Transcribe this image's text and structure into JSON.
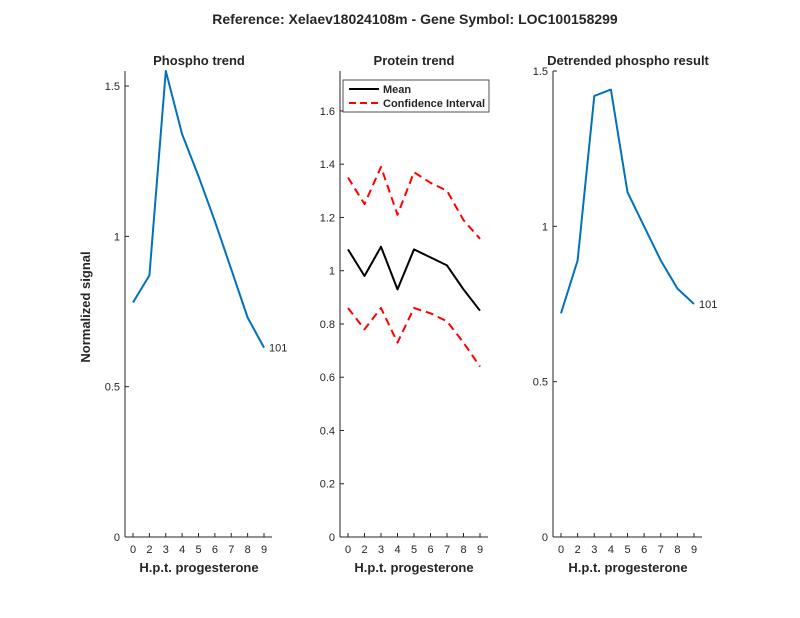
{
  "figure_title": "Reference:  Xelaev18024108m - Gene Symbol:  LOC100158299",
  "colors": {
    "blue": "#0072BD",
    "black": "#000000",
    "red": "#FF0000",
    "axis": "#262626"
  },
  "chart_data": [
    {
      "type": "line",
      "title": "Phospho trend",
      "xlabel": "H.p.t. progesterone",
      "ylabel": "Normalized signal",
      "categories": [
        "0",
        "2",
        "3",
        "4",
        "5",
        "6",
        "7",
        "8",
        "9"
      ],
      "yticks": [
        "0",
        "0.5",
        "1",
        "1.5"
      ],
      "ylim": [
        0,
        1.55
      ],
      "series": [
        {
          "values": [
            0.78,
            0.87,
            1.55,
            1.34,
            1.2,
            1.05,
            0.89,
            0.73,
            0.63
          ],
          "color": "#0072BD",
          "style": "solid",
          "end_label": "101"
        }
      ]
    },
    {
      "type": "line",
      "title": "Protein trend",
      "xlabel": "H.p.t. progesterone",
      "categories": [
        "0",
        "2",
        "3",
        "4",
        "5",
        "6",
        "7",
        "8",
        "9"
      ],
      "yticks": [
        "0",
        "0.2",
        "0.4",
        "0.6",
        "0.8",
        "1",
        "1.2",
        "1.4",
        "1.6"
      ],
      "ylim": [
        0,
        1.75
      ],
      "legend_placement": "top-left",
      "series": [
        {
          "name": "Mean",
          "values": [
            1.08,
            0.98,
            1.09,
            0.93,
            1.08,
            1.05,
            1.02,
            0.93,
            0.85
          ],
          "color": "#000000",
          "style": "solid"
        },
        {
          "name": "Confidence Interval",
          "values": [
            1.35,
            1.25,
            1.39,
            1.21,
            1.37,
            1.33,
            1.3,
            1.19,
            1.12
          ],
          "color": "#FF0000",
          "style": "dashed"
        },
        {
          "values": [
            0.86,
            0.78,
            0.86,
            0.73,
            0.86,
            0.84,
            0.81,
            0.73,
            0.64
          ],
          "color": "#FF0000",
          "style": "dashed"
        }
      ]
    },
    {
      "type": "line",
      "title": "Detrended phospho result",
      "xlabel": "H.p.t. progesterone",
      "categories": [
        "0",
        "2",
        "3",
        "4",
        "5",
        "6",
        "7",
        "8",
        "9"
      ],
      "yticks": [
        "0",
        "0.5",
        "1",
        "1.5"
      ],
      "ylim": [
        0,
        1.5
      ],
      "series": [
        {
          "values": [
            0.72,
            0.89,
            1.42,
            1.44,
            1.11,
            1.0,
            0.89,
            0.8,
            0.75
          ],
          "color": "#0072BD",
          "style": "solid",
          "end_label": "101"
        }
      ]
    }
  ]
}
